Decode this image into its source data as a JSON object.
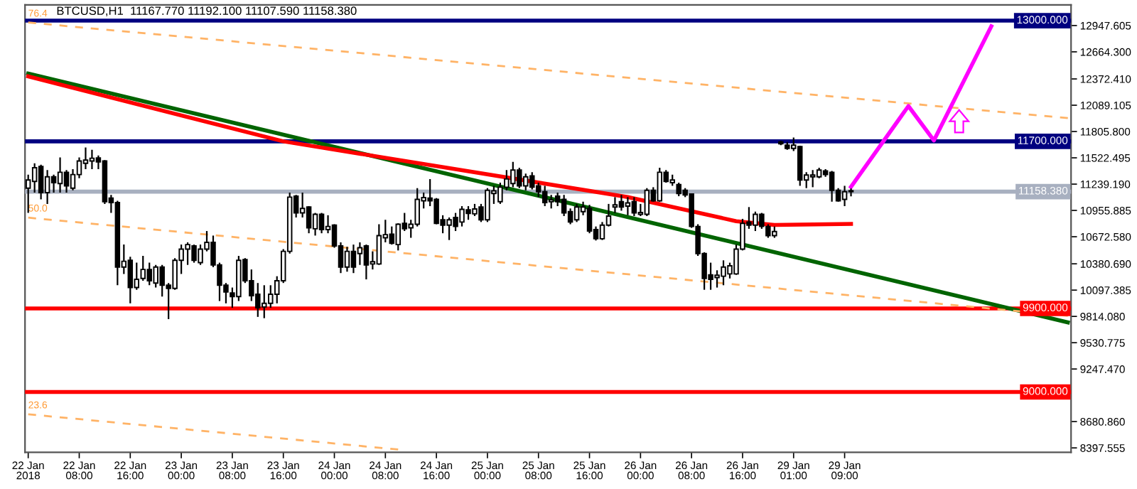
{
  "chart_data": {
    "type": "candlestick",
    "title": "BTCUSD,H1  11167.770 11192.100 11107.590 11158.380",
    "categories": [
      "22 Jan 2018",
      null,
      null,
      null,
      null,
      null,
      null,
      null,
      "22 Jan 08:00",
      null,
      null,
      null,
      null,
      null,
      null,
      null,
      "22 Jan 16:00",
      null,
      null,
      null,
      null,
      null,
      null,
      null,
      "23 Jan 00:00",
      null,
      null,
      null,
      null,
      null,
      null,
      null,
      "23 Jan 08:00",
      null,
      null,
      null,
      null,
      null,
      null,
      null,
      "23 Jan 16:00",
      null,
      null,
      null,
      null,
      null,
      null,
      null,
      "24 Jan 00:00",
      null,
      null,
      null,
      null,
      null,
      null,
      null,
      "24 Jan 08:00",
      null,
      null,
      null,
      null,
      null,
      null,
      null,
      "24 Jan 16:00",
      null,
      null,
      null,
      null,
      null,
      null,
      null,
      "25 Jan 00:00",
      null,
      null,
      null,
      null,
      null,
      null,
      null,
      "25 Jan 08:00",
      null,
      null,
      null,
      null,
      null,
      null,
      null,
      "25 Jan 16:00",
      null,
      null,
      null,
      null,
      null,
      null,
      null,
      "26 Jan 00:00",
      null,
      null,
      null,
      null,
      null,
      null,
      null,
      "26 Jan 08:00",
      null,
      null,
      null,
      null,
      null,
      null,
      null,
      "26 Jan 16:00",
      null,
      null,
      null,
      null,
      null,
      null,
      null,
      "29 Jan 01:00",
      null,
      null,
      null,
      null,
      null,
      null,
      null,
      "29 Jan 09:00",
      null,
      null,
      null,
      null,
      null,
      null,
      null,
      null,
      null,
      null,
      null,
      null,
      null,
      null,
      null,
      null,
      null,
      null,
      null,
      null,
      null,
      null,
      null,
      null,
      null,
      null,
      null,
      null,
      null,
      null,
      null,
      null,
      null,
      null,
      null
    ],
    "ohlc": [
      [
        11196,
        11342,
        10929,
        11284
      ],
      [
        11269,
        11464,
        11148,
        11415
      ],
      [
        11430,
        11449,
        11075,
        11148
      ],
      [
        11148,
        11391,
        11026,
        11318
      ],
      [
        11318,
        11342,
        11148,
        11255
      ],
      [
        11245,
        11527,
        11148,
        11367
      ],
      [
        11367,
        11391,
        11148,
        11221
      ],
      [
        11196,
        11401,
        11172,
        11342
      ],
      [
        11342,
        11527,
        11303,
        11488
      ],
      [
        11464,
        11634,
        11401,
        11498
      ],
      [
        11488,
        11610,
        11401,
        11518
      ],
      [
        11522,
        11547,
        11401,
        11479
      ],
      [
        11488,
        11498,
        11026,
        11050
      ],
      [
        11089,
        11123,
        10929,
        11041
      ],
      [
        11041,
        11060,
        10150,
        10345
      ],
      [
        10345,
        10588,
        10272,
        10408
      ],
      [
        10418,
        10457,
        9955,
        10125
      ],
      [
        10125,
        10393,
        10101,
        10213
      ],
      [
        10223,
        10466,
        10199,
        10320
      ],
      [
        10320,
        10393,
        10150,
        10199
      ],
      [
        10174,
        10369,
        10125,
        10345
      ],
      [
        10345,
        10369,
        10028,
        10150
      ],
      [
        10150,
        10174,
        9785,
        10116
      ],
      [
        10116,
        10442,
        10101,
        10418
      ],
      [
        10418,
        10588,
        10272,
        10539
      ],
      [
        10539,
        10612,
        10369,
        10588
      ],
      [
        10573,
        10588,
        10393,
        10418
      ],
      [
        10393,
        10588,
        10369,
        10539
      ],
      [
        10539,
        10734,
        10515,
        10612
      ],
      [
        10612,
        10685,
        10345,
        10369
      ],
      [
        10369,
        10393,
        9980,
        10150
      ],
      [
        10150,
        10174,
        9955,
        10077
      ],
      [
        10067,
        10125,
        9907,
        10028
      ],
      [
        10028,
        10466,
        9980,
        10418
      ],
      [
        10427,
        10442,
        10174,
        10199
      ],
      [
        10199,
        10320,
        9980,
        10038
      ],
      [
        10053,
        10174,
        9809,
        9907
      ],
      [
        9916,
        10150,
        9795,
        9955
      ],
      [
        9955,
        10150,
        9907,
        10053
      ],
      [
        10053,
        10247,
        9955,
        10199
      ],
      [
        10199,
        10539,
        10174,
        10515
      ],
      [
        10515,
        11148,
        10491,
        11099
      ],
      [
        11109,
        11123,
        10880,
        10929
      ],
      [
        10929,
        11148,
        10880,
        10977
      ],
      [
        10992,
        11002,
        10710,
        10768
      ],
      [
        10758,
        10929,
        10685,
        10914
      ],
      [
        10914,
        10929,
        10710,
        10749
      ],
      [
        10749,
        10904,
        10710,
        10783
      ],
      [
        10797,
        10807,
        10554,
        10573
      ],
      [
        10573,
        10612,
        10281,
        10345
      ],
      [
        10345,
        10564,
        10296,
        10515
      ],
      [
        10515,
        10588,
        10281,
        10345
      ],
      [
        10491,
        10612,
        10369,
        10554
      ],
      [
        10573,
        10588,
        10213,
        10369
      ],
      [
        10379,
        10515,
        10320,
        10403
      ],
      [
        10379,
        10807,
        10369,
        10685
      ],
      [
        10661,
        10855,
        10612,
        10695
      ],
      [
        10700,
        10783,
        10588,
        10602
      ],
      [
        10588,
        10817,
        10525,
        10807
      ],
      [
        10817,
        10929,
        10734,
        10758
      ],
      [
        10768,
        10855,
        10661,
        10807
      ],
      [
        10807,
        11196,
        10783,
        11075
      ],
      [
        11060,
        11148,
        10977,
        11094
      ],
      [
        11089,
        11294,
        11002,
        11060
      ],
      [
        11075,
        11089,
        10807,
        10817
      ],
      [
        10855,
        10904,
        10710,
        10797
      ],
      [
        10797,
        10880,
        10637,
        10855
      ],
      [
        10880,
        10929,
        10734,
        10783
      ],
      [
        10831,
        11002,
        10783,
        10968
      ],
      [
        10963,
        11002,
        10855,
        10924
      ],
      [
        10919,
        11026,
        10895,
        10972
      ],
      [
        10992,
        11026,
        10831,
        10855
      ],
      [
        10855,
        11196,
        10831,
        11172
      ],
      [
        11138,
        11221,
        11026,
        11167
      ],
      [
        11050,
        11255,
        11026,
        11206
      ],
      [
        11206,
        11391,
        11172,
        11294
      ],
      [
        11245,
        11479,
        11206,
        11391
      ],
      [
        11391,
        11415,
        11196,
        11221
      ],
      [
        11221,
        11352,
        11172,
        11318
      ],
      [
        11328,
        11367,
        11182,
        11206
      ],
      [
        11221,
        11255,
        11099,
        11157
      ],
      [
        11157,
        11221,
        11002,
        11041
      ],
      [
        11050,
        11123,
        10977,
        11070
      ],
      [
        11109,
        11148,
        11002,
        11050
      ],
      [
        11075,
        11123,
        10895,
        10929
      ],
      [
        10943,
        10977,
        10807,
        10831
      ],
      [
        10855,
        11026,
        10831,
        10992
      ],
      [
        10943,
        11050,
        10904,
        10992
      ],
      [
        10977,
        11016,
        10710,
        10734
      ],
      [
        10749,
        10783,
        10632,
        10651
      ],
      [
        10651,
        10831,
        10637,
        10797
      ],
      [
        10797,
        11026,
        10783,
        10895
      ],
      [
        10992,
        11099,
        10929,
        11016
      ],
      [
        11050,
        11123,
        10953,
        10992
      ],
      [
        11002,
        11099,
        10904,
        11036
      ],
      [
        11050,
        11099,
        10895,
        10929
      ],
      [
        10914,
        11026,
        10895,
        10934
      ],
      [
        10914,
        11196,
        10895,
        11172
      ],
      [
        11172,
        11206,
        11050,
        11060
      ],
      [
        11060,
        11415,
        11050,
        11367
      ],
      [
        11367,
        11391,
        11255,
        11269
      ],
      [
        11255,
        11342,
        11221,
        11284
      ],
      [
        11235,
        11255,
        11109,
        11138
      ],
      [
        11172,
        11196,
        11099,
        11123
      ],
      [
        11133,
        11138,
        10768,
        10783
      ],
      [
        10783,
        10807,
        10466,
        10491
      ],
      [
        10491,
        10505,
        10101,
        10223
      ],
      [
        10262,
        10393,
        10101,
        10213
      ],
      [
        10233,
        10311,
        10125,
        10257
      ],
      [
        10247,
        10418,
        10150,
        10345
      ],
      [
        10272,
        10393,
        10223,
        10359
      ],
      [
        10272,
        10588,
        10262,
        10539
      ],
      [
        10539,
        10865,
        10525,
        10817
      ],
      [
        10831,
        10992,
        10758,
        10797
      ],
      [
        10797,
        10943,
        10734,
        10914
      ],
      [
        10914,
        10929,
        10758,
        10783
      ],
      [
        10783,
        10807,
        10661,
        10685
      ],
      [
        10685,
        10783,
        10661,
        10729
      ],
      [
        11693,
        11707,
        11659,
        11673
      ],
      [
        11659,
        11693,
        11610,
        11625
      ],
      [
        11625,
        11741,
        11595,
        11659
      ],
      [
        11644,
        11654,
        11221,
        11284
      ],
      [
        11284,
        11367,
        11196,
        11337
      ],
      [
        11318,
        11391,
        11206,
        11337
      ],
      [
        11318,
        11415,
        11303,
        11391
      ],
      [
        11381,
        11401,
        11318,
        11342
      ],
      [
        11367,
        11381,
        11050,
        11172
      ],
      [
        11172,
        11196,
        11050,
        11060
      ],
      [
        11075,
        11221,
        11002,
        11157
      ],
      [
        11167.77,
        11192.1,
        11107.59,
        11158.38
      ],
      null,
      null,
      null,
      null,
      null,
      null,
      null,
      null,
      null,
      null,
      null,
      null,
      null,
      null,
      null,
      null,
      null,
      null,
      null,
      null,
      null,
      null,
      null,
      null,
      null,
      null,
      null,
      null,
      null,
      null,
      null,
      null,
      null,
      null
    ],
    "series": [
      {
        "type": "line",
        "color": "#006400",
        "values": [
          12430,
          null,
          null,
          null,
          null,
          null,
          null,
          null,
          null,
          null,
          null,
          null,
          null,
          null,
          null,
          null,
          null,
          null,
          null,
          null,
          null,
          null,
          null,
          null,
          null,
          null,
          null,
          null,
          null,
          null,
          null,
          null,
          null,
          null,
          null,
          null,
          null,
          null,
          null,
          null,
          null,
          null,
          null,
          null,
          null,
          null,
          null,
          null,
          null,
          null,
          null,
          null,
          null,
          null,
          null,
          null,
          null,
          null,
          null,
          null,
          null,
          null,
          null,
          null,
          null,
          null,
          null,
          null,
          null,
          null,
          null,
          null,
          null,
          null,
          null,
          null,
          null,
          null,
          null,
          null,
          null,
          null,
          null,
          null,
          null,
          null,
          null,
          null,
          null,
          null,
          null,
          null,
          null,
          null,
          null,
          null,
          null,
          null,
          null,
          null,
          null,
          null,
          null,
          null,
          null,
          null,
          null,
          null,
          null,
          null,
          null,
          null,
          null,
          null,
          null,
          null,
          null,
          null,
          null,
          null,
          null,
          null,
          null,
          null,
          null,
          null,
          null,
          null,
          null,
          null,
          null,
          null,
          null,
          null,
          null,
          null,
          null,
          null,
          null,
          null,
          null,
          null,
          null,
          null,
          null,
          null,
          null,
          null,
          null,
          null,
          null,
          null,
          null,
          null,
          null,
          null,
          null,
          null,
          null,
          null,
          null,
          null,
          null,
          9750
        ]
      },
      {
        "type": "line",
        "color": "#ff0000",
        "values": [
          12400,
          null,
          null,
          null,
          null,
          null,
          null,
          null,
          null,
          null,
          null,
          null,
          null,
          null,
          null,
          null,
          null,
          null,
          null,
          null,
          null,
          null,
          null,
          null,
          null,
          null,
          null,
          null,
          null,
          null,
          null,
          null,
          null,
          null,
          null,
          null,
          null,
          null,
          null,
          null,
          11700,
          null,
          null,
          null,
          null,
          null,
          null,
          null,
          null,
          null,
          null,
          null,
          null,
          null,
          null,
          null,
          null,
          null,
          null,
          null,
          null,
          null,
          null,
          null,
          null,
          null,
          null,
          null,
          null,
          null,
          null,
          null,
          null,
          null,
          null,
          null,
          null,
          null,
          null,
          null,
          null,
          null,
          null,
          null,
          null,
          null,
          null,
          null,
          null,
          null,
          null,
          null,
          null,
          null,
          11100,
          null,
          null,
          null,
          null,
          null,
          null,
          null,
          null,
          null,
          null,
          null,
          null,
          null,
          null,
          null,
          null,
          10840,
          null,
          null,
          null,
          null,
          null,
          10800,
          null,
          null,
          null,
          null,
          null,
          null,
          null,
          null,
          null,
          null,
          null,
          10810,
          null,
          null,
          null,
          null,
          null,
          null,
          null,
          null,
          null,
          null,
          null,
          null,
          null,
          null,
          null,
          null,
          null,
          null,
          null,
          null,
          null,
          null,
          null,
          null,
          null,
          null,
          null,
          null,
          null,
          null,
          null,
          null,
          null,
          null
        ]
      },
      {
        "type": "line",
        "color": "#ffb366",
        "line_style": "dashed",
        "values": [
          12980,
          null,
          null,
          null,
          null,
          null,
          null,
          null,
          null,
          null,
          null,
          null,
          null,
          null,
          null,
          null,
          null,
          null,
          null,
          null,
          null,
          null,
          null,
          null,
          null,
          null,
          null,
          null,
          null,
          null,
          null,
          null,
          null,
          null,
          null,
          null,
          null,
          null,
          null,
          null,
          null,
          null,
          null,
          null,
          null,
          null,
          null,
          null,
          null,
          null,
          null,
          null,
          null,
          null,
          null,
          null,
          null,
          null,
          null,
          null,
          null,
          null,
          null,
          null,
          null,
          null,
          null,
          null,
          null,
          null,
          null,
          null,
          null,
          null,
          null,
          null,
          null,
          null,
          null,
          null,
          null,
          null,
          null,
          null,
          null,
          null,
          null,
          null,
          null,
          null,
          null,
          null,
          null,
          null,
          null,
          null,
          null,
          null,
          null,
          null,
          null,
          null,
          null,
          null,
          null,
          null,
          null,
          null,
          null,
          null,
          null,
          null,
          null,
          null,
          null,
          null,
          null,
          null,
          null,
          null,
          null,
          null,
          null,
          null,
          null,
          null,
          null,
          null,
          null,
          null,
          null,
          null,
          null,
          null,
          null,
          null,
          null,
          null,
          null,
          null,
          null,
          null,
          null,
          null,
          null,
          null,
          null,
          null,
          null,
          null,
          null,
          null,
          null,
          null,
          null,
          null,
          null,
          null,
          null,
          null,
          null,
          null,
          null,
          11950
        ]
      },
      {
        "type": "line",
        "color": "#ffb366",
        "line_style": "dashed",
        "values": [
          10878,
          null,
          null,
          null,
          null,
          null,
          null,
          null,
          null,
          null,
          null,
          null,
          null,
          null,
          null,
          null,
          null,
          null,
          null,
          null,
          null,
          null,
          null,
          null,
          null,
          null,
          null,
          null,
          null,
          null,
          null,
          null,
          null,
          null,
          null,
          null,
          null,
          null,
          null,
          null,
          null,
          null,
          null,
          null,
          null,
          null,
          null,
          null,
          null,
          null,
          null,
          null,
          null,
          null,
          null,
          null,
          null,
          null,
          null,
          null,
          null,
          null,
          null,
          null,
          null,
          null,
          null,
          null,
          null,
          null,
          null,
          null,
          null,
          null,
          null,
          null,
          null,
          null,
          null,
          null,
          null,
          null,
          null,
          null,
          null,
          null,
          null,
          null,
          null,
          null,
          null,
          null,
          null,
          null,
          null,
          null,
          null,
          null,
          null,
          null,
          null,
          null,
          null,
          null,
          null,
          null,
          null,
          null,
          null,
          null,
          null,
          null,
          null,
          null,
          null,
          null,
          null,
          null,
          null,
          null,
          null,
          null,
          null,
          null,
          null,
          null,
          null,
          null,
          null,
          null,
          null,
          null,
          null,
          null,
          null,
          null,
          null,
          null,
          null,
          null,
          null,
          null,
          null,
          null,
          null,
          null,
          null,
          null,
          null,
          null,
          null,
          null,
          null,
          null,
          null,
          null,
          null,
          null,
          null,
          null,
          null,
          null,
          null,
          9820
        ]
      },
      {
        "type": "line",
        "color": "#ffb366",
        "line_style": "dashed",
        "values": [
          8760,
          null,
          null,
          null,
          null,
          null,
          null,
          null,
          null,
          null,
          null,
          null,
          null,
          null,
          null,
          null,
          null,
          null,
          null,
          null,
          null,
          null,
          null,
          null,
          null,
          null,
          null,
          null,
          null,
          null,
          null,
          null,
          null,
          null,
          null,
          null,
          null,
          null,
          null,
          null,
          null,
          null,
          null,
          null,
          null,
          null,
          null,
          null,
          null,
          null,
          null,
          null,
          null,
          null,
          null,
          null,
          null,
          null,
          8380,
          null,
          null,
          null,
          null,
          null,
          null,
          null,
          null,
          null,
          null,
          null,
          null,
          null,
          null,
          null,
          null,
          null,
          null,
          null,
          null,
          null,
          null,
          null,
          null,
          null,
          null,
          null,
          null,
          null,
          null,
          null,
          null,
          null,
          null,
          null,
          null,
          null,
          null,
          null,
          null,
          null,
          null,
          null,
          null,
          null,
          null,
          null,
          null,
          null,
          null,
          null,
          null,
          null,
          null,
          null,
          null,
          null,
          null,
          null,
          null,
          null,
          null,
          null,
          null,
          null,
          null,
          null,
          null,
          null,
          null,
          null,
          null,
          null,
          null,
          null,
          null,
          null,
          null,
          null,
          null,
          null,
          null,
          null,
          null,
          null,
          null,
          null,
          null,
          null,
          null,
          null,
          null,
          null,
          null,
          null,
          null,
          null,
          null,
          null,
          null,
          null,
          null,
          null,
          null,
          null
        ]
      },
      {
        "type": "line",
        "color": "#ff00ff",
        "values": [
          null,
          null,
          null,
          null,
          null,
          null,
          null,
          null,
          null,
          null,
          null,
          null,
          null,
          null,
          null,
          null,
          null,
          null,
          null,
          null,
          null,
          null,
          null,
          null,
          null,
          null,
          null,
          null,
          null,
          null,
          null,
          null,
          null,
          null,
          null,
          null,
          null,
          null,
          null,
          null,
          null,
          null,
          null,
          null,
          null,
          null,
          null,
          null,
          null,
          null,
          null,
          null,
          null,
          null,
          null,
          null,
          null,
          null,
          null,
          null,
          null,
          null,
          null,
          null,
          null,
          null,
          null,
          null,
          null,
          null,
          null,
          null,
          null,
          null,
          null,
          null,
          null,
          null,
          null,
          null,
          null,
          null,
          null,
          null,
          null,
          null,
          null,
          null,
          null,
          null,
          null,
          null,
          null,
          null,
          null,
          null,
          null,
          null,
          null,
          null,
          null,
          null,
          null,
          null,
          null,
          null,
          null,
          null,
          null,
          null,
          null,
          null,
          null,
          null,
          null,
          null,
          null,
          null,
          null,
          null,
          null,
          null,
          null,
          null,
          null,
          null,
          null,
          null,
          null,
          11210,
          null,
          null,
          null,
          null,
          null,
          null,
          null,
          null,
          12080,
          null,
          null,
          null,
          11710,
          null,
          null,
          null,
          null,
          null,
          null,
          null,
          null,
          12940,
          null,
          null,
          null,
          null,
          null,
          null,
          null,
          null,
          null,
          null,
          null,
          null
        ]
      }
    ],
    "ref_lines": [
      {
        "axis": "y",
        "value": 13000,
        "label": "13000.000",
        "color": "#000080"
      },
      {
        "axis": "y",
        "value": 11700,
        "label": "11700.000",
        "color": "#000080"
      },
      {
        "axis": "y",
        "value": 11158.38,
        "label": "11158.380",
        "color": "#a8b0c0"
      },
      {
        "axis": "y",
        "value": 9900,
        "label": "9900.000",
        "color": "#ff0000"
      },
      {
        "axis": "y",
        "value": 9000,
        "label": "9000.000",
        "color": "#ff0000"
      }
    ],
    "annotations": [
      {
        "text": "76.4",
        "x": "22 Jan 2018",
        "y": 12980
      },
      {
        "text": "50.0",
        "x": "22 Jan 2018",
        "y": 10880
      },
      {
        "text": "23.6",
        "x": "22 Jan 2018",
        "y": 8760
      }
    ],
    "ylim": [
      8350,
      13170
    ],
    "yticks": [
      {
        "value": 12947.605,
        "label": "12947.605"
      },
      {
        "value": 12664.3,
        "label": "12664.300"
      },
      {
        "value": 12372.41,
        "label": "12372.410"
      },
      {
        "value": 12089.105,
        "label": "12089.105"
      },
      {
        "value": 11805.8,
        "label": "11805.800"
      },
      {
        "value": 11522.495,
        "label": "11522.495"
      },
      {
        "value": 11239.19,
        "label": "11239.190"
      },
      {
        "value": 10955.885,
        "label": "10955.885"
      },
      {
        "value": 10672.58,
        "label": "10672.580"
      },
      {
        "value": 10380.69,
        "label": "10380.690"
      },
      {
        "value": 10097.385,
        "label": "10097.385"
      },
      {
        "value": 9814.08,
        "label": "9814.080"
      },
      {
        "value": 9530.775,
        "label": "9530.775"
      },
      {
        "value": 9247.47,
        "label": "9247.470"
      },
      {
        "value": 8680.86,
        "label": "8680.860"
      },
      {
        "value": 8397.555,
        "label": "8397.555"
      }
    ]
  }
}
